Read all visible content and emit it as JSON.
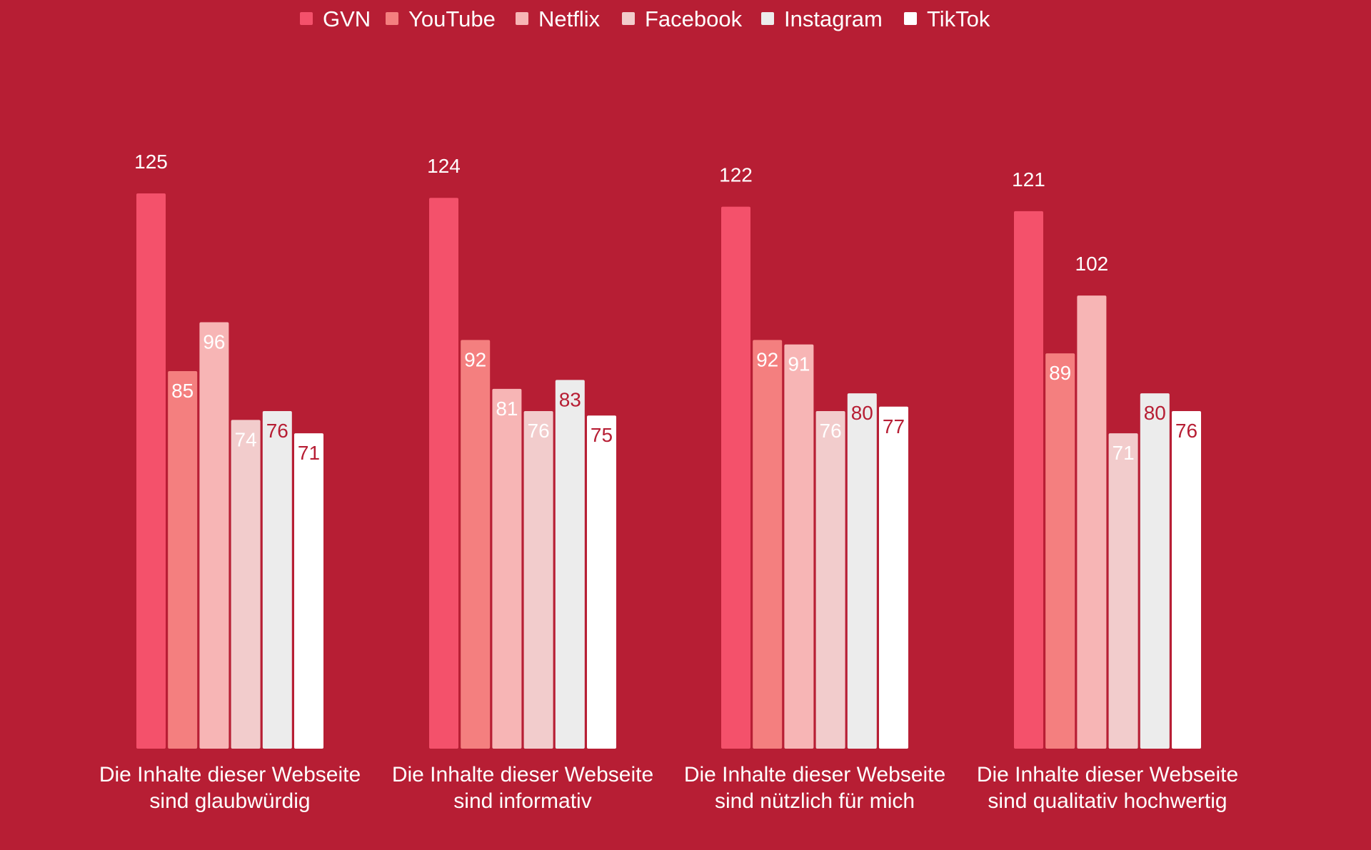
{
  "chart_data": {
    "type": "bar",
    "categories": [
      [
        "Die Inhalte dieser Webseite",
        "sind glaubwürdig"
      ],
      [
        "Die Inhalte dieser Webseite",
        "sind informativ"
      ],
      [
        "Die Inhalte dieser Webseite",
        "sind nützlich für mich"
      ],
      [
        "Die Inhalte dieser Webseite",
        "sind qualitativ hochwertig"
      ]
    ],
    "series": [
      {
        "name": "GVN",
        "color": "#f4516b",
        "label_color": "#ffffff",
        "values": [
          125,
          124,
          122,
          121
        ]
      },
      {
        "name": "YouTube",
        "color": "#f47f7f",
        "label_color": "#ffffff",
        "values": [
          85,
          92,
          92,
          89
        ]
      },
      {
        "name": "Netflix",
        "color": "#f7b5b5",
        "label_color": "#ffffff",
        "values": [
          96,
          81,
          91,
          102
        ]
      },
      {
        "name": "Facebook",
        "color": "#f2cccc",
        "label_color": "#ffffff",
        "values": [
          74,
          76,
          76,
          71
        ]
      },
      {
        "name": "Instagram",
        "color": "#ececec",
        "label_color": "#b71e34",
        "values": [
          76,
          83,
          80,
          80
        ]
      },
      {
        "name": "TikTok",
        "color": "#ffffff",
        "label_color": "#b71e34",
        "values": [
          71,
          75,
          77,
          76
        ]
      }
    ],
    "ylim": [
      0,
      125
    ],
    "legend": "top-center",
    "grid": false,
    "background": "#b71e34"
  }
}
